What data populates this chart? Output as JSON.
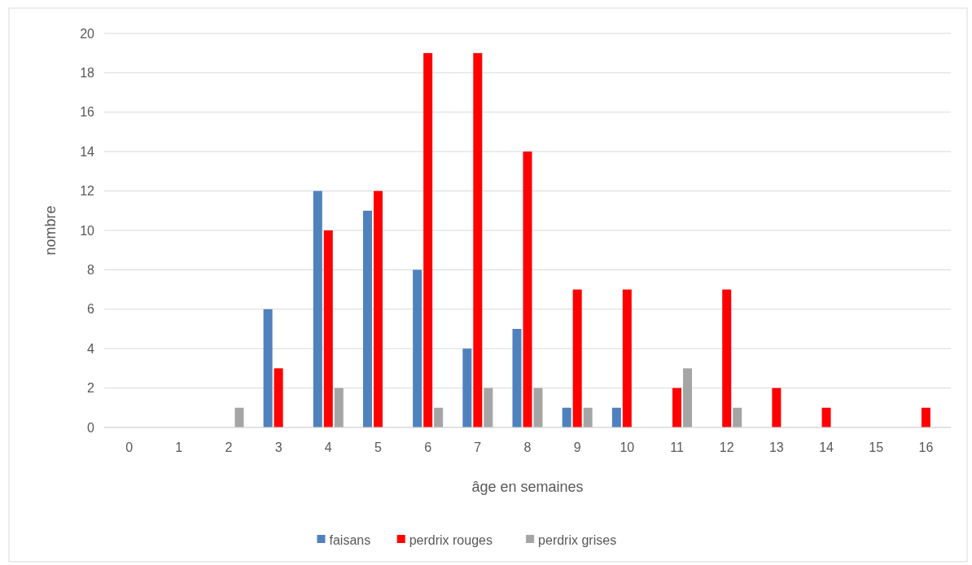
{
  "chart_data": {
    "type": "bar",
    "xlabel": "âge en semaines",
    "ylabel": "nombre",
    "categories": [
      "0",
      "1",
      "2",
      "3",
      "4",
      "5",
      "6",
      "7",
      "8",
      "9",
      "10",
      "11",
      "12",
      "13",
      "14",
      "15",
      "16"
    ],
    "series": [
      {
        "name": "faisans",
        "color": "#4f81bd",
        "values": [
          0,
          0,
          0,
          6,
          12,
          11,
          8,
          4,
          5,
          1,
          1,
          0,
          0,
          0,
          0,
          0,
          0
        ]
      },
      {
        "name": "perdrix rouges",
        "color": "#ff0000",
        "values": [
          0,
          0,
          0,
          3,
          10,
          12,
          19,
          19,
          14,
          7,
          7,
          2,
          7,
          2,
          1,
          0,
          1
        ]
      },
      {
        "name": "perdrix grises",
        "color": "#a5a5a5",
        "values": [
          0,
          0,
          1,
          0,
          2,
          0,
          1,
          2,
          2,
          1,
          0,
          3,
          1,
          0,
          0,
          0,
          0
        ]
      }
    ],
    "ylim": [
      0,
      20
    ],
    "yticks": [
      0,
      2,
      4,
      6,
      8,
      10,
      12,
      14,
      16,
      18,
      20
    ],
    "grid": "y",
    "legend": "bottom"
  }
}
